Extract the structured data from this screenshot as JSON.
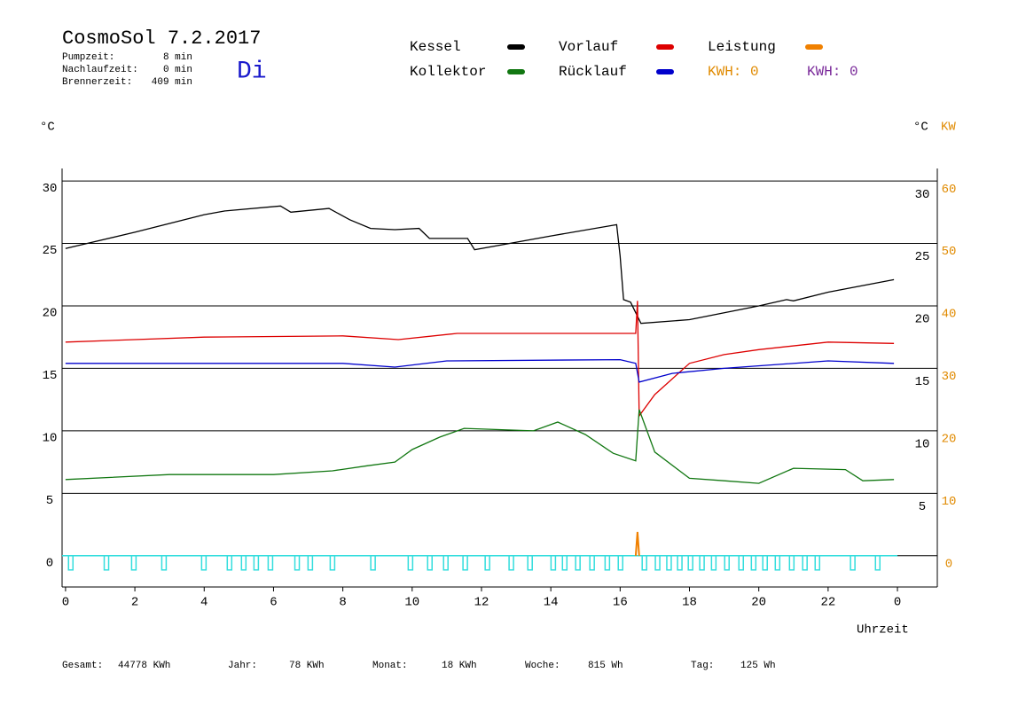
{
  "chart_data": {
    "type": "line",
    "title": "CosmoSol 7.2.2017",
    "weekday": "Di",
    "info": [
      {
        "label": "Pumpzeit:",
        "value": "8 min"
      },
      {
        "label": "Nachlaufzeit:",
        "value": "0 min"
      },
      {
        "label": "Brennerzeit:",
        "value": "409 min"
      }
    ],
    "kwh_labels": [
      {
        "text": "KWH: 0",
        "color": "#e08a00"
      },
      {
        "text": "KWH: 0",
        "color": "#7a2a9a"
      }
    ],
    "y_unit": "°C",
    "y2_unit_c": "°C",
    "y2_unit_kw": "KW",
    "x_label": "Uhrzeit",
    "xlim": [
      -0.1,
      25.15
    ],
    "xticks": [
      0,
      2,
      4,
      6,
      8,
      10,
      12,
      14,
      16,
      18,
      20,
      22,
      {
        "value": 24,
        "label": "0"
      }
    ],
    "ylim": [
      -2.5,
      31
    ],
    "yticks": [
      0,
      5,
      10,
      15,
      20,
      25,
      30
    ],
    "y_right_ticks": [
      5,
      10,
      15,
      20,
      25,
      30
    ],
    "y2lim": [
      -5,
      62
    ],
    "y2ticks": [
      0,
      10,
      20,
      30,
      40,
      50,
      60
    ],
    "grid": true,
    "series": [
      {
        "name": "Kessel",
        "color": "#000000",
        "x": [
          0,
          2,
          4,
          4.6,
          6.2,
          6.5,
          7.6,
          8.2,
          8.8,
          9.5,
          10.2,
          10.5,
          11.6,
          11.8,
          14,
          15.9,
          16.0,
          16.1,
          16.3,
          16.6,
          18,
          20,
          20.8,
          21.0,
          22,
          23.9
        ],
        "values": [
          24.6,
          25.9,
          27.3,
          27.6,
          28.0,
          27.5,
          27.8,
          26.9,
          26.2,
          26.1,
          26.2,
          25.4,
          25.4,
          24.5,
          25.6,
          26.5,
          24.0,
          20.5,
          20.3,
          18.6,
          18.9,
          20.0,
          20.5,
          20.4,
          21.1,
          22.1
        ]
      },
      {
        "name": "Vorlauf",
        "color": "#dd0000",
        "x": [
          0,
          4,
          8,
          9.6,
          11.3,
          14,
          15.9,
          16.45,
          16.5,
          16.55,
          17,
          18,
          19,
          20,
          22,
          23.9
        ],
        "values": [
          17.1,
          17.5,
          17.6,
          17.3,
          17.8,
          17.8,
          17.8,
          17.8,
          20.4,
          11.2,
          12.9,
          15.4,
          16.1,
          16.5,
          17.1,
          17.0
        ]
      },
      {
        "name": "Leistung",
        "color": "#f08000",
        "axis": "y2",
        "x": [
          16.45,
          16.5,
          16.55
        ],
        "values": [
          0,
          3.8,
          0
        ]
      },
      {
        "name": "Kollektor",
        "color": "#117711",
        "x": [
          0,
          3,
          6,
          7.7,
          8.7,
          9.5,
          10,
          10.8,
          11.5,
          13.5,
          14.2,
          15,
          15.8,
          16.45,
          16.55,
          17,
          18,
          19,
          20,
          21,
          22.5,
          23,
          23.9
        ],
        "values": [
          6.1,
          6.5,
          6.5,
          6.8,
          7.2,
          7.5,
          8.5,
          9.5,
          10.2,
          10.0,
          10.7,
          9.7,
          8.2,
          7.6,
          11.7,
          8.3,
          6.2,
          6.0,
          5.8,
          7.0,
          6.9,
          6.0,
          6.1
        ]
      },
      {
        "name": "Rücklauf",
        "color": "#0000cc",
        "x": [
          0,
          8,
          9.5,
          11,
          16,
          16.45,
          16.55,
          17.5,
          19,
          22,
          23.9
        ],
        "values": [
          15.4,
          15.4,
          15.1,
          15.6,
          15.7,
          15.4,
          13.9,
          14.6,
          15.0,
          15.6,
          15.4
        ]
      }
    ],
    "pump_color": "#33dddd",
    "pump_on": [
      0.15,
      1.18,
      1.97,
      2.84,
      3.99,
      4.73,
      5.14,
      5.5,
      5.91,
      6.68,
      7.06,
      7.7,
      8.87,
      9.95,
      10.51,
      10.97,
      11.53,
      12.17,
      12.86,
      13.4,
      14.07,
      14.4,
      14.78,
      15.19,
      15.63,
      16.01,
      16.7,
      17.08,
      17.41,
      17.72,
      18.03,
      18.36,
      18.7,
      19.08,
      19.49,
      19.85,
      20.18,
      20.54,
      20.95,
      21.33,
      21.69,
      22.71,
      23.43
    ],
    "footer": [
      {
        "label": "Gesamt:",
        "value": "44778 KWh"
      },
      {
        "label": "Jahr:",
        "value": "78 KWh"
      },
      {
        "label": "Monat:",
        "value": "18 KWh"
      },
      {
        "label": "Woche:",
        "value": "815 Wh"
      },
      {
        "label": "Tag:",
        "value": "125 Wh"
      }
    ]
  }
}
